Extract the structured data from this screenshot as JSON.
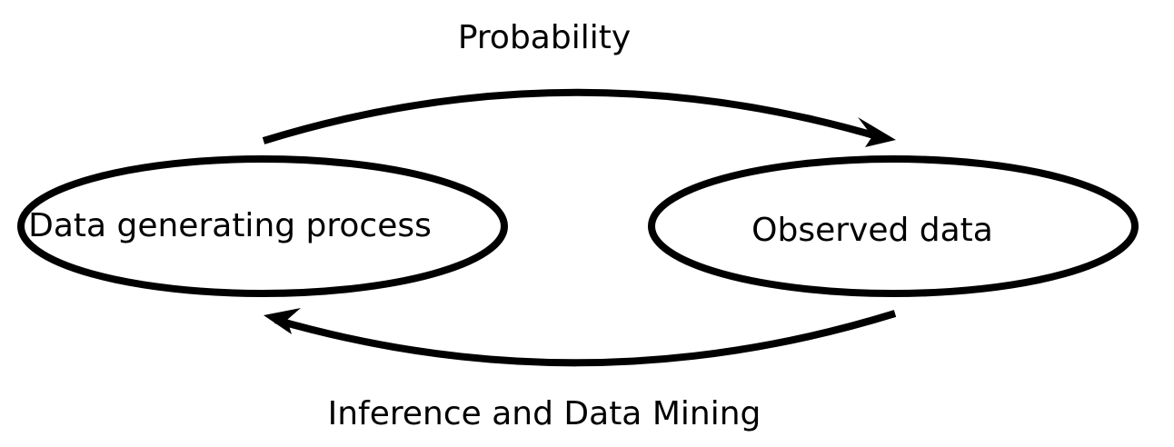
{
  "nodes": {
    "left": {
      "label": "Data generating process"
    },
    "right": {
      "label": "Observed data"
    }
  },
  "edges": {
    "top": {
      "label": "Probability"
    },
    "bottom": {
      "label": "Inference and Data Mining"
    }
  },
  "colors": {
    "stroke": "#000000",
    "background": "#ffffff"
  }
}
